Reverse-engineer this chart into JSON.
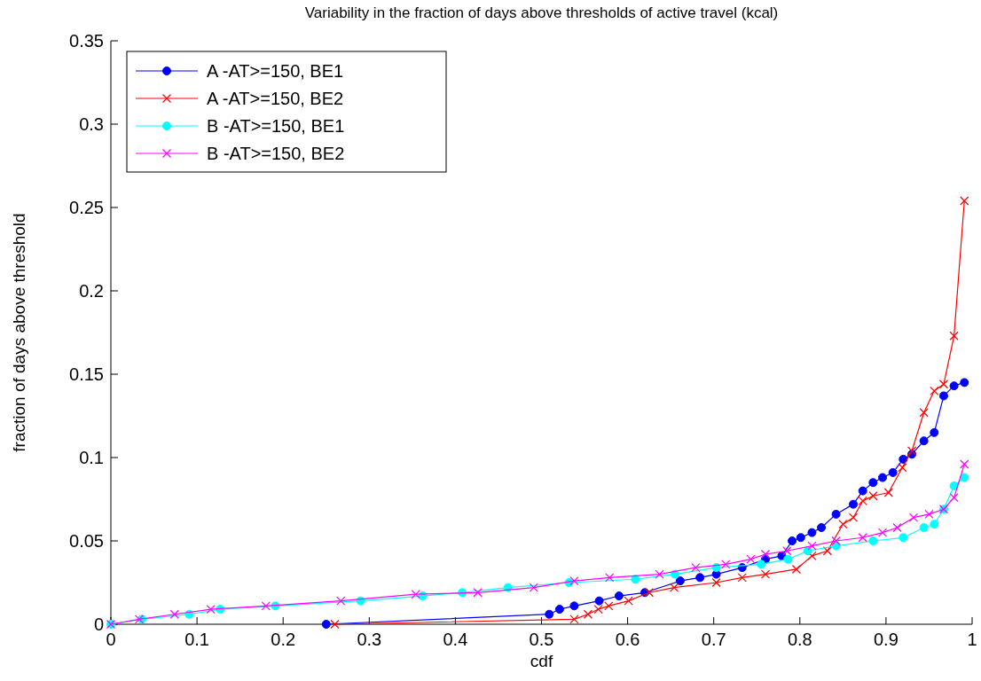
{
  "chart_data": {
    "type": "line",
    "title": "Variability in the fraction of days above thresholds of active travel (kcal)",
    "xlabel": "cdf",
    "ylabel": "fraction of days above threshold",
    "xlim": [
      0,
      1
    ],
    "xticks": [
      0,
      0.1,
      0.2,
      0.3,
      0.4,
      0.5,
      0.6,
      0.7,
      0.8,
      0.9,
      1
    ],
    "ylim": [
      0,
      0.35
    ],
    "yticks": [
      0,
      0.05,
      0.1,
      0.15,
      0.2,
      0.25,
      0.3,
      0.35
    ],
    "grid": false,
    "legend": "top left",
    "line_style": "solid",
    "series": [
      {
        "name": "A -AT>=150, BE1",
        "color": "#0000ff",
        "marker": "circle",
        "x": [
          0.25,
          0.509,
          0.521,
          0.538,
          0.567,
          0.59,
          0.62,
          0.661,
          0.684,
          0.703,
          0.733,
          0.76,
          0.779,
          0.791,
          0.801,
          0.814,
          0.825,
          0.842,
          0.862,
          0.873,
          0.885,
          0.896,
          0.908,
          0.92,
          0.93,
          0.944,
          0.956,
          0.967,
          0.979,
          0.991
        ],
        "values": [
          0,
          0.006,
          0.009,
          0.011,
          0.014,
          0.017,
          0.019,
          0.026,
          0.028,
          0.03,
          0.034,
          0.039,
          0.041,
          0.05,
          0.052,
          0.055,
          0.058,
          0.066,
          0.072,
          0.08,
          0.085,
          0.088,
          0.091,
          0.099,
          0.102,
          0.11,
          0.115,
          0.137,
          0.143,
          0.145
        ]
      },
      {
        "name": "A -AT>=150, BE2",
        "color": "#ff0000",
        "marker": "cross",
        "x": [
          0.26,
          0.538,
          0.554,
          0.566,
          0.578,
          0.601,
          0.625,
          0.654,
          0.703,
          0.733,
          0.76,
          0.796,
          0.814,
          0.832,
          0.85,
          0.862,
          0.873,
          0.885,
          0.903,
          0.919,
          0.93,
          0.944,
          0.956,
          0.967,
          0.979,
          0.991
        ],
        "values": [
          0,
          0.003,
          0.006,
          0.009,
          0.011,
          0.014,
          0.019,
          0.022,
          0.025,
          0.028,
          0.03,
          0.033,
          0.041,
          0.044,
          0.06,
          0.064,
          0.074,
          0.077,
          0.079,
          0.094,
          0.104,
          0.127,
          0.14,
          0.144,
          0.173,
          0.254
        ]
      },
      {
        "name": "B -AT>=150, BE1",
        "color": "#00ffff",
        "marker": "circle",
        "x": [
          0,
          0.036,
          0.091,
          0.127,
          0.191,
          0.29,
          0.362,
          0.408,
          0.461,
          0.532,
          0.609,
          0.655,
          0.703,
          0.755,
          0.786,
          0.809,
          0.842,
          0.885,
          0.92,
          0.944,
          0.956,
          0.967,
          0.979,
          0.991
        ],
        "values": [
          0,
          0.003,
          0.006,
          0.009,
          0.011,
          0.014,
          0.017,
          0.019,
          0.022,
          0.025,
          0.027,
          0.03,
          0.034,
          0.036,
          0.039,
          0.044,
          0.047,
          0.05,
          0.052,
          0.058,
          0.06,
          0.069,
          0.083,
          0.088
        ]
      },
      {
        "name": "B -AT>=150, BE2",
        "color": "#ff00ff",
        "marker": "cross",
        "x": [
          0,
          0.033,
          0.074,
          0.116,
          0.18,
          0.267,
          0.354,
          0.426,
          0.491,
          0.538,
          0.579,
          0.637,
          0.679,
          0.714,
          0.743,
          0.76,
          0.785,
          0.814,
          0.842,
          0.873,
          0.896,
          0.913,
          0.932,
          0.95,
          0.967,
          0.979,
          0.991
        ],
        "values": [
          0,
          0.003,
          0.006,
          0.009,
          0.011,
          0.014,
          0.018,
          0.019,
          0.022,
          0.026,
          0.028,
          0.03,
          0.034,
          0.036,
          0.039,
          0.042,
          0.044,
          0.047,
          0.05,
          0.052,
          0.055,
          0.058,
          0.064,
          0.066,
          0.069,
          0.076,
          0.096
        ]
      }
    ]
  }
}
